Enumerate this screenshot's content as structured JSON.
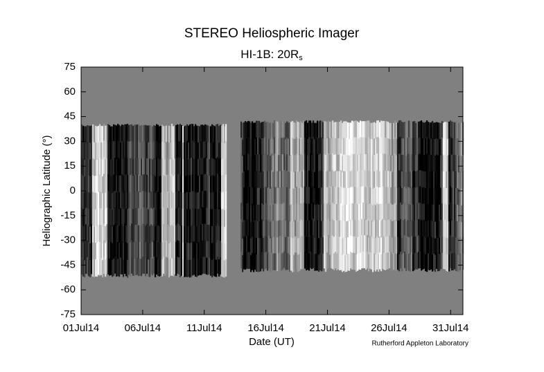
{
  "chart_data": {
    "type": "image",
    "title": "STEREO Heliospheric Imager",
    "subtitle": {
      "text": "HI-1B: 20R",
      "subscript": "s"
    },
    "xlabel": "Date (UT)",
    "ylabel": "Heliographic Latitude (°)",
    "credit": "Rutherford Appleton Laboratory",
    "xlim": [
      "2014-07-01",
      "2014-08-01"
    ],
    "xticks": [
      {
        "value": "2014-07-01",
        "label": "01Jul14"
      },
      {
        "value": "2014-07-06",
        "label": "06Jul14"
      },
      {
        "value": "2014-07-11",
        "label": "11Jul14"
      },
      {
        "value": "2014-07-16",
        "label": "16Jul14"
      },
      {
        "value": "2014-07-21",
        "label": "21Jul14"
      },
      {
        "value": "2014-07-26",
        "label": "26Jul14"
      },
      {
        "value": "2014-07-31",
        "label": "31Jul14"
      }
    ],
    "ylim": [
      -75,
      75
    ],
    "yticks": [
      75,
      60,
      45,
      30,
      15,
      0,
      -15,
      -30,
      -45,
      -60,
      -75
    ],
    "background": "#808080"
  }
}
